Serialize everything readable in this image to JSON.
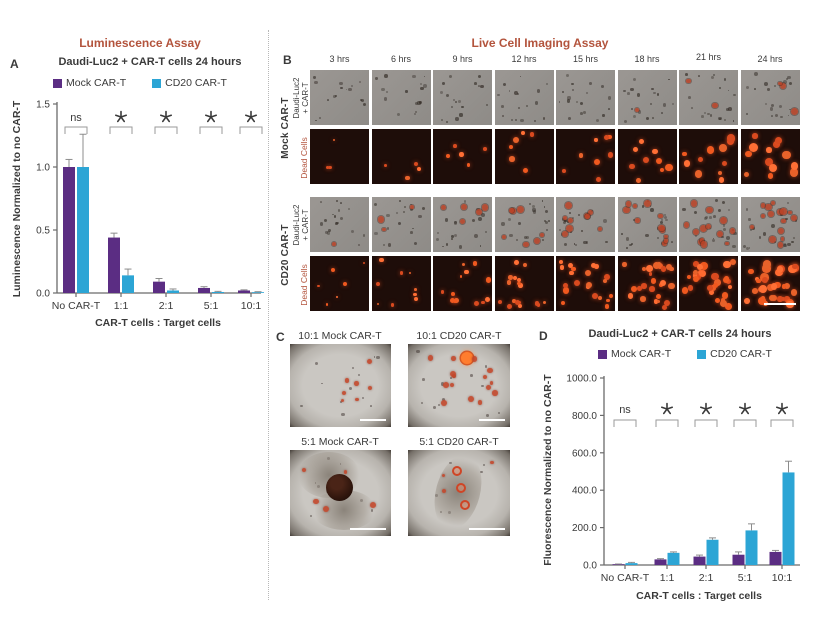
{
  "sections": {
    "left_header": "Luminescence Assay",
    "right_header": "Live Cell Imaging Assay"
  },
  "colors": {
    "header": "#b3543d",
    "mock_purple": "#5b2d83",
    "cd20_blue": "#2ca5d5",
    "text": "#3a3a3a",
    "error_bar": "#8c8c8c",
    "dead_cells_label": "#b3543d"
  },
  "chart_data": [
    {
      "id": "panelA",
      "panel_label": "A",
      "type": "bar",
      "title": "Daudi-Luc2 + CAR-T cells 24 hours",
      "categories": [
        "No CAR-T",
        "1:1",
        "2:1",
        "5:1",
        "10:1"
      ],
      "series": [
        {
          "name": "Mock CAR-T",
          "color": "#5b2d83",
          "values": [
            1.0,
            0.44,
            0.09,
            0.04,
            0.02
          ],
          "errors": [
            0.06,
            0.035,
            0.025,
            0.01,
            0.005
          ]
        },
        {
          "name": "CD20 CAR-T",
          "color": "#2ca5d5",
          "values": [
            1.0,
            0.14,
            0.02,
            0.008,
            0.006
          ],
          "errors": [
            0.26,
            0.05,
            0.012,
            0.005,
            0.004
          ]
        }
      ],
      "ylabel": "Luminescence Normalized to no CAR-T",
      "xlabel": "CAR-T cells : Target cells",
      "yticks": [
        0,
        0.5,
        1.0,
        1.5
      ],
      "ytick_labels": [
        "0.0",
        "0.5",
        "1.0",
        "1.5"
      ],
      "ylim": [
        0,
        1.5
      ],
      "significance": [
        "ns",
        "*",
        "*",
        "*",
        "*"
      ],
      "legend_position": "top",
      "grid": false
    },
    {
      "id": "panelD",
      "panel_label": "D",
      "type": "bar",
      "title": "Daudi-Luc2 + CAR-T cells 24 hours",
      "categories": [
        "No CAR-T",
        "1:1",
        "2:1",
        "5:1",
        "10:1"
      ],
      "series": [
        {
          "name": "Mock CAR-T",
          "color": "#5b2d83",
          "values": [
            2,
            30,
            45,
            55,
            70
          ],
          "errors": [
            1,
            4,
            8,
            15,
            8
          ]
        },
        {
          "name": "CD20 CAR-T",
          "color": "#2ca5d5",
          "values": [
            10,
            65,
            135,
            185,
            495
          ],
          "errors": [
            4,
            5,
            10,
            35,
            60
          ]
        }
      ],
      "ylabel": "Fluorescence Normalized to no CAR-T",
      "xlabel": "CAR-T cells : Target cells",
      "yticks": [
        0,
        200,
        400,
        600,
        800,
        1000
      ],
      "ytick_labels": [
        "0.0",
        "200.0",
        "400.0",
        "600.0",
        "800.0",
        "1000.0"
      ],
      "ylim": [
        0,
        1000
      ],
      "significance": [
        "ns",
        "*",
        "*",
        "*",
        "*"
      ],
      "legend_position": "top",
      "grid": false
    }
  ],
  "panelB": {
    "panel_label": "B",
    "timepoints": [
      "3 hrs",
      "6 hrs",
      "9 hrs",
      "12 hrs",
      "15 hrs",
      "18 hrs",
      "21 hrs",
      "24 hrs"
    ],
    "groups": [
      {
        "name": "Mock CAR-T",
        "rows": [
          {
            "label": "Daudi-Luc2 + CAR-T",
            "label_lines": [
              "Daudi-Luc2",
              "+ CAR-T"
            ],
            "kind": "phase",
            "red_dots": [
              0,
              0,
              0,
              0,
              0,
              1,
              2,
              3
            ],
            "dark_dots": [
              16,
              17,
              18,
              18,
              19,
              19,
              20,
              20
            ]
          },
          {
            "label": "Dead Cells",
            "kind": "fluorescence",
            "red_dots": [
              3,
              4,
              5,
              6,
              8,
              9,
              11,
              13
            ]
          }
        ]
      },
      {
        "name": "CD20 CAR-T",
        "rows": [
          {
            "label": "Daudi-Luc2 + CAR-T",
            "label_lines": [
              "Daudi-Luc2",
              "+ CAR-T"
            ],
            "kind": "phase",
            "red_dots": [
              1,
              3,
              5,
              7,
              9,
              11,
              13,
              15
            ],
            "dark_dots": [
              18,
              18,
              19,
              19,
              20,
              20,
              21,
              21
            ]
          },
          {
            "label": "Dead Cells",
            "kind": "fluorescence",
            "red_dots": [
              6,
              9,
              13,
              17,
              21,
              25,
              29,
              33
            ],
            "scale_bar_last": true
          }
        ]
      }
    ]
  },
  "panelC": {
    "panel_label": "C",
    "images": [
      {
        "label": "10:1 Mock CAR-T",
        "red_dots": 7,
        "dark_dots": 12,
        "feature": "none"
      },
      {
        "label": "10:1 CD20 CAR-T",
        "red_dots": 15,
        "dark_dots": 14,
        "feature": "bright-blob"
      },
      {
        "label": "5:1 Mock CAR-T",
        "red_dots": 5,
        "dark_dots": 8,
        "feature": "dual-cluster-bubble"
      },
      {
        "label": "5:1 CD20 CAR-T",
        "red_dots": 3,
        "dark_dots": 6,
        "feature": "diagonal-cluster-rings"
      }
    ]
  }
}
